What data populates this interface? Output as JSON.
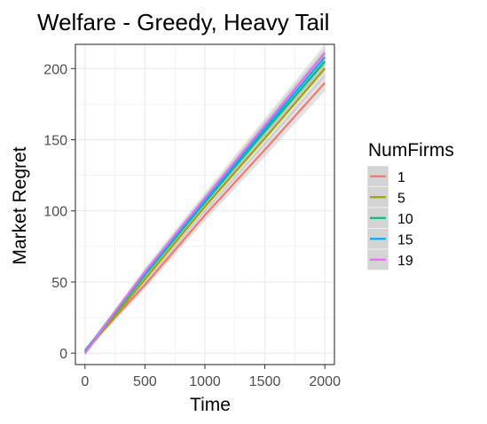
{
  "chart_data": {
    "type": "line",
    "title": "Welfare - Greedy, Heavy Tail",
    "xlabel": "Time",
    "ylabel": "Market Regret",
    "xlim": [
      -80,
      2080
    ],
    "ylim": [
      -8,
      217
    ],
    "x_ticks": [
      0,
      500,
      1000,
      1500,
      2000
    ],
    "y_ticks": [
      0,
      50,
      100,
      150,
      200
    ],
    "grid": true,
    "legend": {
      "title": "NumFirms",
      "placement": "right"
    },
    "confidence_band": true,
    "series": [
      {
        "name": "1",
        "color": "#F8766D",
        "x": [
          0,
          250,
          500,
          1000,
          1500,
          2000
        ],
        "y": [
          2,
          25,
          48,
          97,
          143,
          190
        ],
        "band": [
          2,
          2,
          3,
          4,
          5,
          6
        ]
      },
      {
        "name": "5",
        "color": "#A3A500",
        "x": [
          0,
          250,
          500,
          1000,
          1500,
          2000
        ],
        "y": [
          1,
          26,
          52,
          103,
          151,
          200
        ],
        "band": [
          2,
          2,
          3,
          4,
          5,
          6
        ]
      },
      {
        "name": "10",
        "color": "#00BF7D",
        "x": [
          0,
          250,
          500,
          1000,
          1500,
          2000
        ],
        "y": [
          1,
          28,
          55,
          106,
          156,
          205
        ],
        "band": [
          2,
          2,
          3,
          4,
          5,
          6
        ]
      },
      {
        "name": "15",
        "color": "#00B0F6",
        "x": [
          0,
          250,
          500,
          1000,
          1500,
          2000
        ],
        "y": [
          1,
          29,
          56,
          107,
          158,
          208
        ],
        "band": [
          2,
          2,
          3,
          4,
          5,
          6
        ]
      },
      {
        "name": "19",
        "color": "#E76BF3",
        "x": [
          0,
          250,
          500,
          1000,
          1500,
          2000
        ],
        "y": [
          0,
          29,
          57,
          109,
          160,
          211
        ],
        "band": [
          2,
          2,
          3,
          4,
          5,
          6
        ]
      }
    ]
  }
}
